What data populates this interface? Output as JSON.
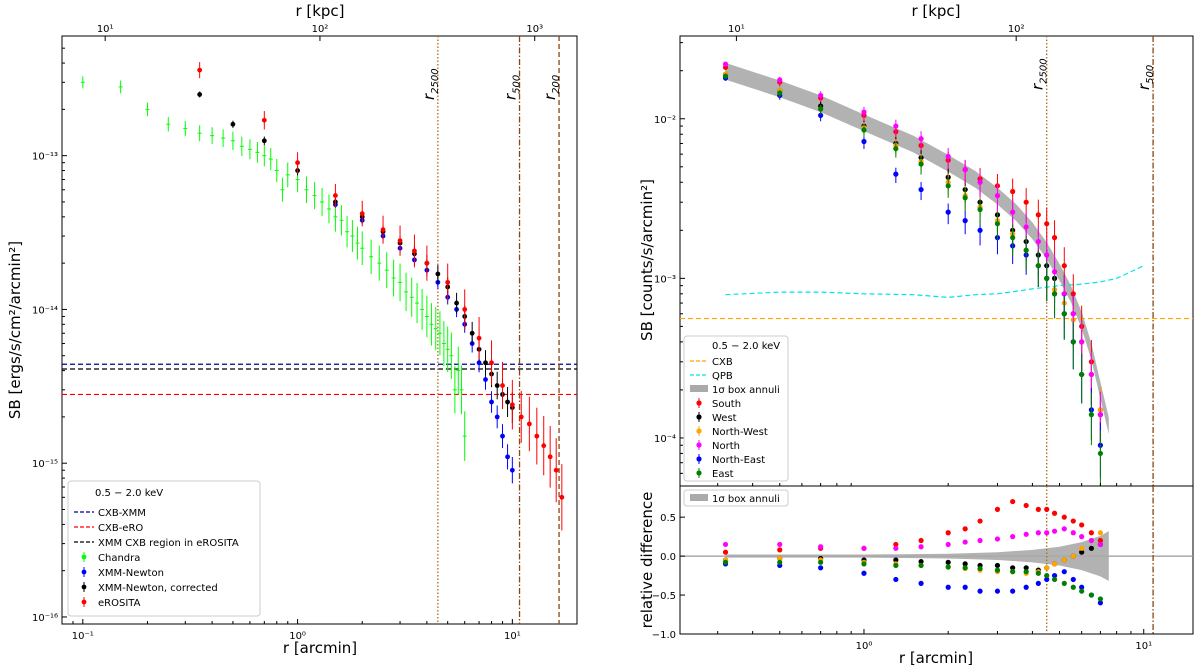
{
  "chart_data": [
    {
      "type": "scatter",
      "title": "",
      "xlabel": "r [arcmin]",
      "ylabel": "SB [ergs/s/cm²/arcmin²]",
      "top_xlabel": "r [kpc]",
      "xscale": "log",
      "yscale": "log",
      "xlim": [
        0.08,
        20
      ],
      "ylim": [
        9e-17,
        6e-13
      ],
      "x_ticks": [
        "10⁻¹",
        "10⁰",
        "10¹"
      ],
      "y_ticks": [
        "10⁻¹⁶",
        "10⁻¹⁵",
        "10⁻¹⁴",
        "10⁻¹³"
      ],
      "top_ticks": [
        "10¹",
        "10²",
        "10³"
      ],
      "vlines": [
        {
          "label": "r2500",
          "x": 4.5,
          "style": "dotted",
          "color": "#b5651d"
        },
        {
          "label": "r500",
          "x": 10.8,
          "style": "dashdot",
          "color": "#8b4513"
        },
        {
          "label": "r200",
          "x": 16.5,
          "style": "dashed",
          "color": "#8b4513"
        }
      ],
      "hlines": [
        {
          "label": "CXB-XMM",
          "y": 4.4e-15,
          "color": "#00008b"
        },
        {
          "label": "CXB-eRO",
          "y": 2.8e-15,
          "color": "#ff0000"
        },
        {
          "label": "XMM CXB region in eROSITA",
          "y": 4.1e-15,
          "color": "#000000"
        }
      ],
      "legend_title": "0.5 − 2.0 keV",
      "series": [
        {
          "name": "Chandra",
          "color": "#00ff00",
          "marker": "x",
          "x": [
            0.1,
            0.15,
            0.2,
            0.25,
            0.3,
            0.35,
            0.4,
            0.45,
            0.5,
            0.55,
            0.6,
            0.65,
            0.7,
            0.75,
            0.8,
            0.85,
            0.9,
            1.0,
            1.1,
            1.2,
            1.3,
            1.4,
            1.5,
            1.6,
            1.7,
            1.8,
            1.9,
            2.0,
            2.2,
            2.4,
            2.6,
            2.8,
            3.0,
            3.2,
            3.4,
            3.6,
            3.8,
            4.0,
            4.2,
            4.4,
            4.6,
            4.8,
            5.0,
            5.2,
            5.4,
            5.6,
            5.8,
            6.0
          ],
          "y": [
            3e-13,
            2.8e-13,
            2e-13,
            1.6e-13,
            1.5e-13,
            1.4e-13,
            1.35e-13,
            1.3e-13,
            1.25e-13,
            1.15e-13,
            1.1e-13,
            1.05e-13,
            1e-13,
            9.5e-14,
            8e-14,
            6e-14,
            7.5e-14,
            7e-14,
            6e-14,
            5.5e-14,
            5e-14,
            4.5e-14,
            4e-14,
            3.8e-14,
            3.2e-14,
            3e-14,
            2.7e-14,
            2.5e-14,
            2.2e-14,
            2e-14,
            1.8e-14,
            1.6e-14,
            1.5e-14,
            1.3e-14,
            1.2e-14,
            1.1e-14,
            1e-14,
            9e-15,
            8e-15,
            7.5e-15,
            7e-15,
            6e-15,
            5.5e-15,
            5e-15,
            3e-15,
            4e-15,
            3e-15,
            1.5e-15
          ]
        },
        {
          "name": "XMM-Newton",
          "color": "#0000ff",
          "marker": "o",
          "x": [
            1.5,
            2.0,
            2.5,
            3.0,
            3.5,
            4.0,
            4.5,
            5.0,
            5.5,
            6.0,
            6.5,
            7.0,
            7.5,
            8.0,
            8.5,
            9.0,
            9.5,
            10.0
          ],
          "y": [
            4.8e-14,
            3.8e-14,
            3e-14,
            2.5e-14,
            2.1e-14,
            1.8e-14,
            1.5e-14,
            1.2e-14,
            1e-14,
            8e-15,
            6e-15,
            4.5e-15,
            3.5e-15,
            2.5e-15,
            2e-15,
            1.5e-15,
            1.1e-15,
            9e-16
          ]
        },
        {
          "name": "XMM-Newton, corrected",
          "color": "#000000",
          "marker": "o",
          "x": [
            0.35,
            0.5,
            0.7,
            1.0,
            1.5,
            2.0,
            2.5,
            3.0,
            3.5,
            4.0,
            4.5,
            5.0,
            5.5,
            6.0,
            6.5,
            7.0,
            7.5,
            8.0,
            8.5,
            9.0,
            9.5,
            10.0
          ],
          "y": [
            2.5e-13,
            1.6e-13,
            1.25e-13,
            8e-14,
            5e-14,
            4e-14,
            3.2e-14,
            2.7e-14,
            2.3e-14,
            2e-14,
            1.7e-14,
            1.4e-14,
            1.1e-14,
            9e-15,
            7e-15,
            5.5e-15,
            4.5e-15,
            3.8e-15,
            3.2e-15,
            2.8e-15,
            2.5e-15,
            2.3e-15
          ]
        },
        {
          "name": "eROSITA",
          "color": "#ff0000",
          "marker": "o",
          "x": [
            0.35,
            0.7,
            1.0,
            1.5,
            2.0,
            2.5,
            3.0,
            3.5,
            4.0,
            5.0,
            6.0,
            7.0,
            8.0,
            9.0,
            10.0,
            11.0,
            12.0,
            13.0,
            14.0,
            15.0,
            16.0,
            17.0
          ],
          "y": [
            3.6e-13,
            1.7e-13,
            9e-14,
            5.5e-14,
            4.2e-14,
            3.3e-14,
            2.8e-14,
            2.4e-14,
            2e-14,
            1.5e-14,
            1e-14,
            6.5e-15,
            4.5e-15,
            3.2e-15,
            2.4e-15,
            2e-15,
            1.8e-15,
            1.5e-15,
            1.3e-15,
            1.1e-15,
            9e-16,
            6e-16
          ]
        }
      ]
    },
    {
      "type": "scatter",
      "title": "",
      "xlabel": "r [arcmin]",
      "ylabel": "SB [counts/s/arcmin²]",
      "top_xlabel": "r [kpc]",
      "xscale": "log",
      "yscale": "log",
      "xlim": [
        0.22,
        15
      ],
      "ylim": [
        5e-05,
        0.033
      ],
      "x_ticks": [
        "10⁰",
        "10¹"
      ],
      "y_ticks": [
        "10⁻⁴",
        "10⁻³",
        "10⁻²"
      ],
      "top_ticks": [
        "10¹",
        "10²"
      ],
      "vlines": [
        {
          "label": "r2500",
          "x": 4.5,
          "style": "dotted",
          "color": "#b5651d"
        },
        {
          "label": "r500",
          "x": 10.8,
          "style": "dashdot",
          "color": "#8b4513"
        }
      ],
      "hlines": [
        {
          "label": "CXB",
          "y": 0.00056,
          "color": "#ffa500"
        }
      ],
      "qpb": {
        "label": "QPB",
        "color": "#00e5e5",
        "x": [
          0.32,
          0.5,
          0.7,
          1.0,
          1.5,
          2.0,
          2.5,
          3.0,
          3.5,
          4.0,
          5.0,
          6.0,
          7.0,
          8.0,
          9.0,
          10.0
        ],
        "y": [
          0.00079,
          0.00082,
          0.00082,
          0.0008,
          0.00079,
          0.00076,
          0.00079,
          0.0008,
          0.00083,
          0.00086,
          0.0009,
          0.00092,
          0.00095,
          0.001,
          0.0011,
          0.0012
        ]
      },
      "band": {
        "label": "1σ box annuli",
        "x": [
          0.32,
          0.5,
          0.7,
          1.0,
          1.5,
          2.0,
          2.5,
          3.0,
          3.5,
          4.0,
          4.5,
          5.0,
          5.5,
          6.0,
          6.5,
          7.0,
          7.5
        ],
        "y": [
          0.02,
          0.0155,
          0.0125,
          0.0095,
          0.007,
          0.0053,
          0.0042,
          0.0033,
          0.0026,
          0.002,
          0.0015,
          0.0011,
          0.0008,
          0.00055,
          0.00035,
          0.0002,
          0.00012
        ]
      },
      "legend_title": "0.5 − 2.0 keV",
      "series": [
        {
          "name": "South",
          "color": "#ff0000",
          "x": [
            0.32,
            0.5,
            0.7,
            1.0,
            1.3,
            1.6,
            2.0,
            2.3,
            2.6,
            3.0,
            3.4,
            3.8,
            4.2,
            4.5,
            4.8,
            5.2,
            5.6,
            6.0,
            6.5,
            7.0
          ],
          "y": [
            0.021,
            0.017,
            0.0135,
            0.0105,
            0.0083,
            0.0068,
            0.0055,
            0.0048,
            0.0042,
            0.0038,
            0.0035,
            0.003,
            0.0025,
            0.0022,
            0.0018,
            0.0012,
            0.0008,
            0.0005,
            0.0003,
            0.00015
          ]
        },
        {
          "name": "West",
          "color": "#000000",
          "x": [
            0.32,
            0.5,
            0.7,
            1.0,
            1.3,
            1.6,
            2.0,
            2.3,
            2.6,
            3.0,
            3.4,
            3.8,
            4.2,
            4.5,
            4.8,
            5.2,
            5.6,
            6.0,
            6.5,
            7.0
          ],
          "y": [
            0.019,
            0.015,
            0.012,
            0.009,
            0.007,
            0.0057,
            0.0043,
            0.0036,
            0.003,
            0.0025,
            0.002,
            0.0017,
            0.0014,
            0.0012,
            0.001,
            0.0008,
            0.0006,
            0.0004,
            0.00025,
            0.00014
          ]
        },
        {
          "name": "North-West",
          "color": "#ffa500",
          "x": [
            0.32,
            0.5,
            0.7,
            1.0,
            1.3,
            1.6,
            2.0,
            2.3,
            2.6,
            3.0,
            3.4,
            3.8,
            4.2,
            4.5,
            4.8,
            5.2,
            5.6,
            6.0,
            6.5,
            7.0
          ],
          "y": [
            0.019,
            0.015,
            0.0115,
            0.0088,
            0.0068,
            0.0054,
            0.004,
            0.0033,
            0.0028,
            0.0023,
            0.0019,
            0.0015,
            0.0012,
            0.001,
            0.00085,
            0.0007,
            0.00055,
            0.0004,
            0.00025,
            0.00015
          ]
        },
        {
          "name": "North",
          "color": "#ff00ff",
          "x": [
            0.32,
            0.5,
            0.7,
            1.0,
            1.3,
            1.6,
            2.0,
            2.3,
            2.6,
            3.0,
            3.4,
            3.8,
            4.2,
            4.5,
            4.8,
            5.2,
            5.6,
            6.0,
            6.5,
            7.0
          ],
          "y": [
            0.022,
            0.0175,
            0.014,
            0.011,
            0.009,
            0.0075,
            0.0058,
            0.0048,
            0.004,
            0.0033,
            0.0026,
            0.0021,
            0.0017,
            0.0014,
            0.0011,
            0.0008,
            0.0006,
            0.0004,
            0.00025,
            0.00014
          ]
        },
        {
          "name": "North-East",
          "color": "#0000ff",
          "x": [
            0.32,
            0.5,
            0.7,
            1.0,
            1.3,
            1.6,
            2.0,
            2.3,
            2.6,
            3.0,
            3.4,
            3.8,
            4.2,
            4.5,
            4.8,
            5.2,
            5.6,
            6.0,
            6.5,
            7.0
          ],
          "y": [
            0.018,
            0.014,
            0.0105,
            0.0072,
            0.0045,
            0.0036,
            0.0026,
            0.0023,
            0.002,
            0.0018,
            0.0016,
            0.0014,
            0.0012,
            0.001,
            0.0008,
            0.0006,
            0.0004,
            0.00025,
            0.00015,
            9e-05
          ]
        },
        {
          "name": "East",
          "color": "#008000",
          "x": [
            0.32,
            0.5,
            0.7,
            1.0,
            1.3,
            1.6,
            2.0,
            2.3,
            2.6,
            3.0,
            3.4,
            3.8,
            4.2,
            4.5,
            4.8,
            5.2,
            5.6,
            6.0,
            6.5,
            7.0
          ],
          "y": [
            0.0185,
            0.0145,
            0.0115,
            0.0085,
            0.0065,
            0.0052,
            0.0038,
            0.0032,
            0.0027,
            0.0022,
            0.0018,
            0.0015,
            0.0012,
            0.001,
            0.0008,
            0.0006,
            0.0004,
            0.00025,
            0.00014,
            8e-05
          ]
        }
      ]
    },
    {
      "type": "scatter",
      "title": "",
      "xlabel": "r [arcmin]",
      "ylabel": "relative difference",
      "xscale": "log",
      "yscale": "linear",
      "xlim": [
        0.22,
        15
      ],
      "ylim": [
        -1.0,
        0.9
      ],
      "x_ticks": [
        "10⁰",
        "10¹"
      ],
      "y_ticks": [
        "−1.0",
        "−0.5",
        "0.0",
        "0.5"
      ],
      "band_label": "1σ box annuli",
      "series": [
        {
          "name": "South",
          "color": "#ff0000",
          "x": [
            0.32,
            0.5,
            0.7,
            1.0,
            1.3,
            1.6,
            2.0,
            2.3,
            2.6,
            3.0,
            3.4,
            3.8,
            4.2,
            4.5,
            4.8,
            5.2,
            5.6,
            6.0,
            6.5,
            7.0
          ],
          "y": [
            0.05,
            0.08,
            0.1,
            0.1,
            0.15,
            0.2,
            0.3,
            0.35,
            0.45,
            0.6,
            0.7,
            0.65,
            0.6,
            0.6,
            0.55,
            0.5,
            0.45,
            0.4,
            0.3,
            0.2
          ]
        },
        {
          "name": "West",
          "color": "#000000",
          "x": [
            0.32,
            0.5,
            0.7,
            1.0,
            1.3,
            1.6,
            2.0,
            2.3,
            2.6,
            3.0,
            3.4,
            3.8,
            4.2,
            4.5,
            4.8,
            5.2,
            5.6,
            6.0,
            6.5,
            7.0
          ],
          "y": [
            -0.05,
            -0.03,
            -0.03,
            -0.05,
            -0.05,
            -0.07,
            -0.08,
            -0.1,
            -0.12,
            -0.12,
            -0.15,
            -0.15,
            -0.18,
            -0.15,
            -0.1,
            -0.05,
            0.0,
            0.05,
            0.1,
            0.15
          ]
        },
        {
          "name": "North-West",
          "color": "#ffa500",
          "x": [
            0.32,
            0.5,
            0.7,
            1.0,
            1.3,
            1.6,
            2.0,
            2.3,
            2.6,
            3.0,
            3.4,
            3.8,
            4.2,
            4.5,
            4.8,
            5.2,
            5.6,
            6.0,
            6.5,
            7.0
          ],
          "y": [
            -0.05,
            -0.03,
            -0.05,
            -0.08,
            -0.1,
            -0.12,
            -0.14,
            -0.16,
            -0.18,
            -0.2,
            -0.2,
            -0.22,
            -0.2,
            -0.15,
            -0.1,
            -0.05,
            0.0,
            0.1,
            0.2,
            0.3
          ]
        },
        {
          "name": "North",
          "color": "#ff00ff",
          "x": [
            0.32,
            0.5,
            0.7,
            1.0,
            1.3,
            1.6,
            2.0,
            2.3,
            2.6,
            3.0,
            3.4,
            3.8,
            4.2,
            4.5,
            4.8,
            5.2,
            5.6,
            6.0,
            6.5,
            7.0
          ],
          "y": [
            0.15,
            0.15,
            0.12,
            0.1,
            0.1,
            0.12,
            0.15,
            0.18,
            0.2,
            0.22,
            0.25,
            0.28,
            0.3,
            0.3,
            0.32,
            0.35,
            0.3,
            0.25,
            0.2,
            0.15
          ]
        },
        {
          "name": "North-East",
          "color": "#0000ff",
          "x": [
            0.32,
            0.5,
            0.7,
            1.0,
            1.3,
            1.6,
            2.0,
            2.3,
            2.6,
            3.0,
            3.4,
            3.8,
            4.2,
            4.5,
            4.8,
            5.2,
            5.6,
            6.0,
            6.5,
            7.0
          ],
          "y": [
            -0.1,
            -0.12,
            -0.15,
            -0.22,
            -0.3,
            -0.35,
            -0.4,
            -0.4,
            -0.45,
            -0.45,
            -0.45,
            -0.4,
            -0.35,
            -0.3,
            -0.25,
            -0.2,
            -0.3,
            -0.4,
            -0.5,
            -0.6
          ]
        },
        {
          "name": "East",
          "color": "#008000",
          "x": [
            0.32,
            0.5,
            0.7,
            1.0,
            1.3,
            1.6,
            2.0,
            2.3,
            2.6,
            3.0,
            3.4,
            3.8,
            4.2,
            4.5,
            4.8,
            5.2,
            5.6,
            6.0,
            6.5,
            7.0
          ],
          "y": [
            -0.08,
            -0.08,
            -0.08,
            -0.1,
            -0.12,
            -0.12,
            -0.14,
            -0.15,
            -0.16,
            -0.18,
            -0.2,
            -0.2,
            -0.22,
            -0.25,
            -0.3,
            -0.35,
            -0.4,
            -0.45,
            -0.5,
            -0.55
          ]
        }
      ]
    }
  ]
}
